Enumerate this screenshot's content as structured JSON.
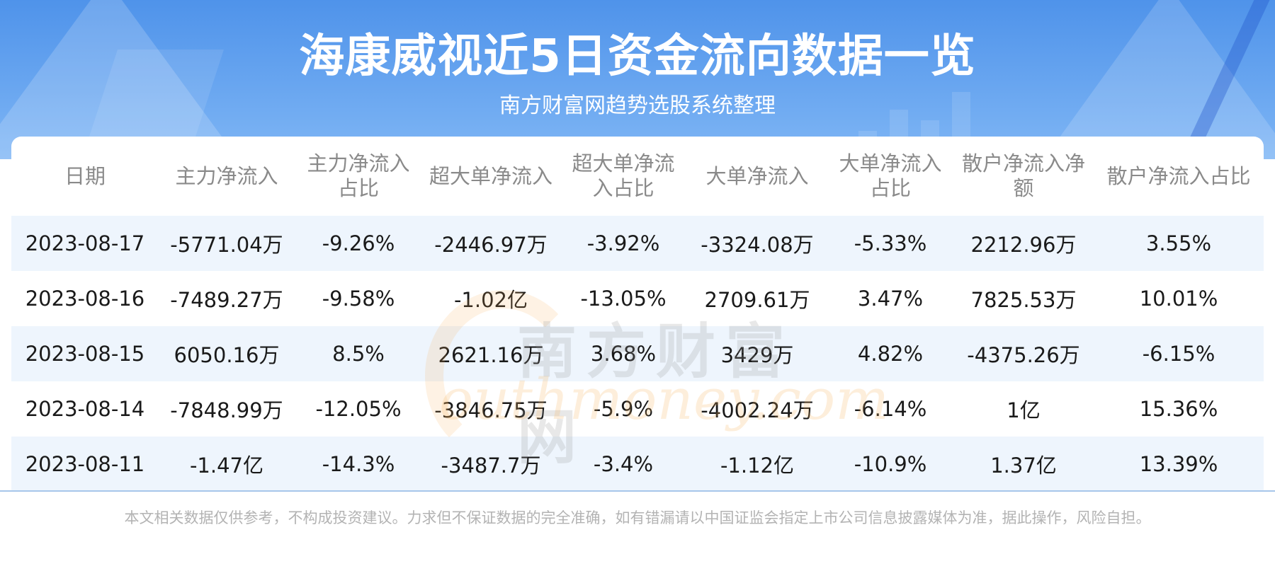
{
  "header": {
    "title": "海康威视近5日资金流向数据一览",
    "subtitle": "南方财富网趋势选股系统整理"
  },
  "watermark": {
    "cn": "南方财富网",
    "en": "outhmoney.com"
  },
  "table": {
    "columns": [
      "日期",
      "主力净流入",
      "主力净流入占比",
      "超大单净流入",
      "超大单净流入占比",
      "大单净流入",
      "大单净流入占比",
      "散户净流入净额",
      "散户净流入占比"
    ],
    "rows": [
      [
        "2023-08-17",
        "-5771.04万",
        "-9.26%",
        "-2446.97万",
        "-3.92%",
        "-3324.08万",
        "-5.33%",
        "2212.96万",
        "3.55%"
      ],
      [
        "2023-08-16",
        "-7489.27万",
        "-9.58%",
        "-1.02亿",
        "-13.05%",
        "2709.61万",
        "3.47%",
        "7825.53万",
        "10.01%"
      ],
      [
        "2023-08-15",
        "6050.16万",
        "8.5%",
        "2621.16万",
        "3.68%",
        "3429万",
        "4.82%",
        "-4375.26万",
        "-6.15%"
      ],
      [
        "2023-08-14",
        "-7848.99万",
        "-12.05%",
        "-3846.75万",
        "-5.9%",
        "-4002.24万",
        "-6.14%",
        "1亿",
        "15.36%"
      ],
      [
        "2023-08-11",
        "-1.47亿",
        "-14.3%",
        "-3487.7万",
        "-3.4%",
        "-1.12亿",
        "-10.9%",
        "1.37亿",
        "13.39%"
      ]
    ]
  },
  "footer": {
    "disclaimer": "本文相关数据仅供参考，不构成投资建议。力求但不保证数据的完全准确，如有错漏请以中国证监会指定上市公司信息披露媒体为准，据此操作，风险自担。"
  },
  "colors": {
    "header_blue": "#4f93ea",
    "row_stripe": "#eef5fd",
    "header_text": "#8a8a8a",
    "cell_text": "#1a1a1a"
  }
}
